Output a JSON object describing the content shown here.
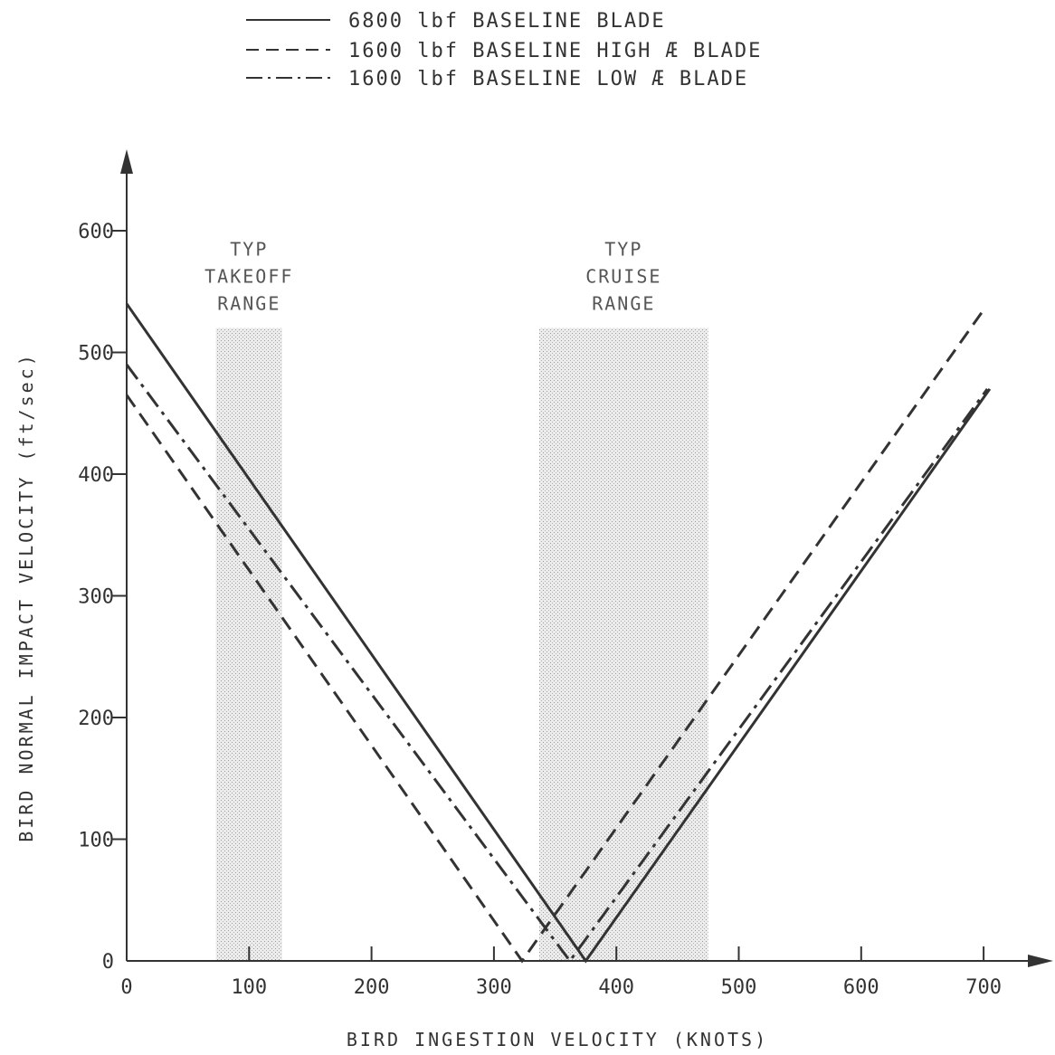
{
  "chart_data": {
    "type": "line",
    "xlabel": "BIRD INGESTION VELOCITY (KNOTS)",
    "ylabel": "BIRD NORMAL IMPACT VELOCITY (ft/sec)",
    "xlim": [
      0,
      740
    ],
    "ylim": [
      0,
      680
    ],
    "x_ticks": [
      {
        "value": 0,
        "label": "0"
      },
      {
        "value": 100,
        "label": "100"
      },
      {
        "value": 200,
        "label": "200"
      },
      {
        "value": 300,
        "label": "300"
      },
      {
        "value": 400,
        "label": "400"
      },
      {
        "value": 500,
        "label": "500"
      },
      {
        "value": 600,
        "label": "600"
      },
      {
        "value": 700,
        "label": "700"
      }
    ],
    "y_ticks": [
      {
        "value": 0,
        "label": "0"
      },
      {
        "value": 100,
        "label": "100"
      },
      {
        "value": 200,
        "label": "200"
      },
      {
        "value": 300,
        "label": "300"
      },
      {
        "value": 400,
        "label": "400"
      },
      {
        "value": 500,
        "label": "500"
      },
      {
        "value": 600,
        "label": "600"
      }
    ],
    "grid": false,
    "legend_position": "top",
    "bands": [
      {
        "name": "takeoff",
        "label_lines": [
          "TYP",
          "TAKEOFF",
          "RANGE"
        ],
        "x_start": 73,
        "x_end": 127,
        "y_top": 520
      },
      {
        "name": "cruise",
        "label_lines": [
          "TYP",
          "CRUISE",
          "RANGE"
        ],
        "x_start": 337,
        "x_end": 475,
        "y_top": 520
      }
    ],
    "series": [
      {
        "name": "6800 lbf BASELINE BLADE",
        "style": "solid",
        "color": "#333333",
        "x": [
          0,
          375,
          705
        ],
        "y": [
          540,
          0,
          470
        ]
      },
      {
        "name": "1600 lbf BASELINE HIGH Æ BLADE",
        "style": "dashed",
        "color": "#333333",
        "x": [
          0,
          323,
          700
        ],
        "y": [
          465,
          0,
          535
        ]
      },
      {
        "name": "1600 lbf BASELINE LOW Æ BLADE",
        "style": "dashdot",
        "color": "#333333",
        "x": [
          0,
          362,
          703
        ],
        "y": [
          490,
          0,
          470
        ]
      }
    ]
  }
}
